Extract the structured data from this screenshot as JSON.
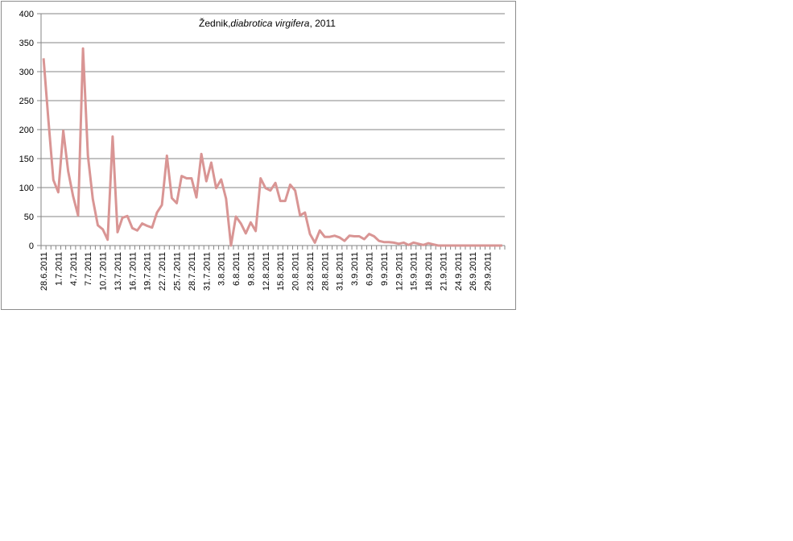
{
  "chart_data": {
    "type": "line",
    "title_parts": [
      "Žednik,",
      "diabrotica virgifera",
      ", 2011"
    ],
    "xlabel": "",
    "ylabel": "",
    "ylim": [
      0,
      400
    ],
    "y_ticks": [
      0,
      50,
      100,
      150,
      200,
      250,
      300,
      350,
      400
    ],
    "grid": "horizontal",
    "legend": "none",
    "line_color": "#d99594",
    "x_tick_labels": [
      "28.6.2011",
      "1.7.2011",
      "4.7.2011",
      "7.7.2011",
      "10.7.2011",
      "13.7.2011",
      "16.7.2011",
      "19.7.2011",
      "22.7.2011",
      "25.7.2011",
      "28.7.2011",
      "31.7.2011",
      "3.8.2011",
      "6.8.2011",
      "9.8.2011",
      "12.8.2011",
      "15.8.2011",
      "20.8.2011",
      "23.8.2011",
      "28.8.2011",
      "31.8.2011",
      "3.9.2011",
      "6.9.2011",
      "9.9.2011",
      "12.9.2011",
      "15.9.2011",
      "18.9.2011",
      "21.9.2011",
      "24.9.2011",
      "26.9.2011",
      "29.9.2011"
    ],
    "values": [
      323,
      215,
      113,
      92,
      198,
      128,
      85,
      52,
      340,
      155,
      80,
      35,
      28,
      10,
      188,
      23,
      48,
      51,
      30,
      26,
      38,
      34,
      31,
      57,
      70,
      155,
      82,
      73,
      120,
      116,
      116,
      83,
      158,
      111,
      143,
      99,
      114,
      81,
      0,
      50,
      38,
      21,
      40,
      25,
      116,
      99,
      95,
      108,
      77,
      77,
      105,
      95,
      52,
      57,
      20,
      5,
      26,
      15,
      15,
      17,
      14,
      8,
      17,
      16,
      16,
      11,
      20,
      16,
      8,
      6,
      6,
      5,
      3,
      5,
      1,
      5,
      3,
      1,
      4,
      2,
      0,
      0,
      0,
      0,
      0,
      0,
      0,
      0,
      0,
      0,
      0,
      0,
      0,
      0
    ]
  }
}
